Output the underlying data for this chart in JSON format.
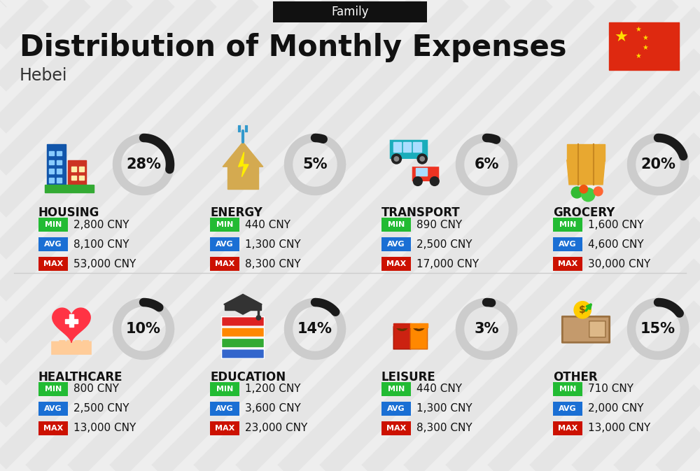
{
  "title": "Distribution of Monthly Expenses",
  "subtitle": "Hebei",
  "category_label": "Family",
  "bg_color": "#eeeeee",
  "stripe_color": "#e2e2e2",
  "categories": [
    {
      "name": "HOUSING",
      "pct": 28,
      "min_val": "2,800 CNY",
      "avg_val": "8,100 CNY",
      "max_val": "53,000 CNY",
      "icon": "housing",
      "row": 0,
      "col": 0
    },
    {
      "name": "ENERGY",
      "pct": 5,
      "min_val": "440 CNY",
      "avg_val": "1,300 CNY",
      "max_val": "8,300 CNY",
      "icon": "energy",
      "row": 0,
      "col": 1
    },
    {
      "name": "TRANSPORT",
      "pct": 6,
      "min_val": "890 CNY",
      "avg_val": "2,500 CNY",
      "max_val": "17,000 CNY",
      "icon": "transport",
      "row": 0,
      "col": 2
    },
    {
      "name": "GROCERY",
      "pct": 20,
      "min_val": "1,600 CNY",
      "avg_val": "4,600 CNY",
      "max_val": "30,000 CNY",
      "icon": "grocery",
      "row": 0,
      "col": 3
    },
    {
      "name": "HEALTHCARE",
      "pct": 10,
      "min_val": "800 CNY",
      "avg_val": "2,500 CNY",
      "max_val": "13,000 CNY",
      "icon": "healthcare",
      "row": 1,
      "col": 0
    },
    {
      "name": "EDUCATION",
      "pct": 14,
      "min_val": "1,200 CNY",
      "avg_val": "3,600 CNY",
      "max_val": "23,000 CNY",
      "icon": "education",
      "row": 1,
      "col": 1
    },
    {
      "name": "LEISURE",
      "pct": 3,
      "min_val": "440 CNY",
      "avg_val": "1,300 CNY",
      "max_val": "8,300 CNY",
      "icon": "leisure",
      "row": 1,
      "col": 2
    },
    {
      "name": "OTHER",
      "pct": 15,
      "min_val": "710 CNY",
      "avg_val": "2,000 CNY",
      "max_val": "13,000 CNY",
      "icon": "other",
      "row": 1,
      "col": 3
    }
  ],
  "min_color": "#22bb33",
  "avg_color": "#1a6fd4",
  "max_color": "#cc1100",
  "donut_bg": "#cccccc",
  "donut_fg": "#1a1a1a",
  "title_fontsize": 30,
  "subtitle_fontsize": 17,
  "cat_name_fontsize": 12,
  "val_fontsize": 11,
  "pct_fontsize": 15
}
